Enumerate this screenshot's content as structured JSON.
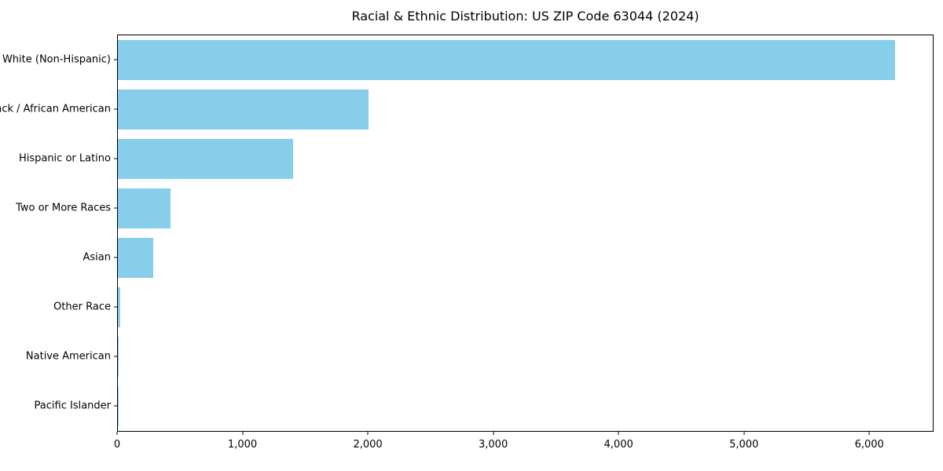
{
  "title": "Racial & Ethnic Distribution: US ZIP Code 63044 (2024)",
  "chart_data": {
    "type": "bar",
    "orientation": "horizontal",
    "title": "Racial & Ethnic Distribution: US ZIP Code 63044 (2024)",
    "categories": [
      "White (Non-Hispanic)",
      "Black / African American",
      "Hispanic or Latino",
      "Two or More Races",
      "Asian",
      "Other Race",
      "Native American",
      "Pacific Islander"
    ],
    "values": [
      6200,
      2000,
      1400,
      420,
      280,
      20,
      5,
      2
    ],
    "xlabel": "",
    "ylabel": "",
    "xlim": [
      0,
      6500
    ],
    "x_ticks": [
      0,
      1000,
      2000,
      3000,
      4000,
      5000,
      6000
    ],
    "x_tick_labels": [
      "0",
      "1,000",
      "2,000",
      "3,000",
      "4,000",
      "5,000",
      "6,000"
    ],
    "bar_color": "#87CEEB",
    "grid": false,
    "legend": false,
    "background": "#ffffff",
    "bar_relative_thickness": 0.8
  }
}
